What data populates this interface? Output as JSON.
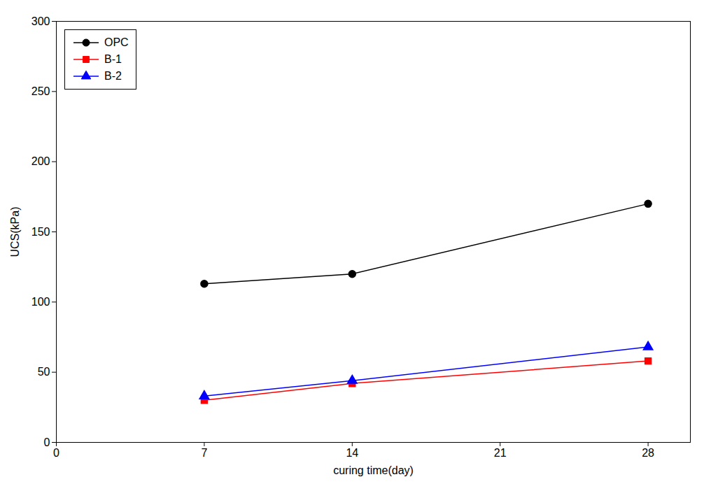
{
  "chart_data": {
    "type": "line",
    "x": [
      7,
      14,
      28
    ],
    "series": [
      {
        "name": "OPC",
        "color": "#000000",
        "marker": "circle",
        "values": [
          113,
          120,
          170
        ]
      },
      {
        "name": "B-1",
        "color": "#ff0000",
        "marker": "square",
        "values": [
          30,
          42,
          58
        ]
      },
      {
        "name": "B-2",
        "color": "#0000ff",
        "marker": "triangle",
        "values": [
          33,
          44,
          68
        ]
      }
    ],
    "xlabel": "curing time(day)",
    "ylabel": "UCS(kPa)",
    "xlim": [
      0,
      30
    ],
    "ylim": [
      0,
      300
    ],
    "xticks": [
      0,
      7,
      14,
      21,
      28
    ],
    "yticks": [
      0,
      50,
      100,
      150,
      200,
      250,
      300
    ],
    "grid": false,
    "legend": "upper left"
  }
}
